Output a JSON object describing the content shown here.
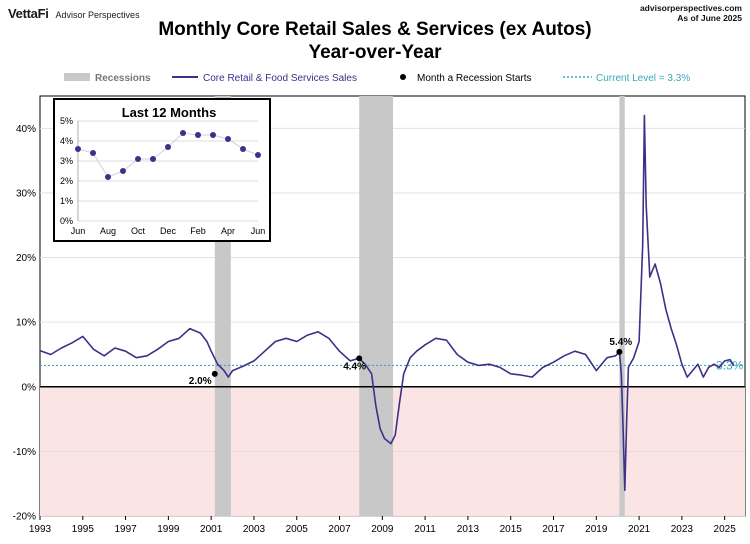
{
  "header": {
    "brand": "VettaFi",
    "brand_sub": "Advisor Perspectives",
    "site": "advisorperspectives.com",
    "as_of": "As of June 2025",
    "title_line1": "Monthly Core Retail Sales & Services (ex Autos)",
    "title_line2": "Year-over-Year"
  },
  "legend": {
    "recessions": "Recessions",
    "series": "Core Retail & Food Services Sales",
    "recession_start": "Month a Recession Starts",
    "current_level": "Current Level = 3.3%"
  },
  "colors": {
    "series": "#3f2f8a",
    "recession": "#c8c8c8",
    "negative_zone": "#fbe4e4",
    "current_level": "#3aa9b8",
    "grid": "#dddddd"
  },
  "chart_data": [
    {
      "type": "line",
      "title": "",
      "y_unit": "%",
      "ylim": [
        -20,
        45
      ],
      "y_ticks": [
        -20,
        -10,
        0,
        10,
        20,
        30,
        40
      ],
      "y_tick_labels": [
        "-20%",
        "-10%",
        "0%",
        "10%",
        "20%",
        "30%",
        "40%"
      ],
      "x_ticks": [
        1993,
        1995,
        1997,
        1999,
        2001,
        2003,
        2005,
        2007,
        2009,
        2011,
        2013,
        2015,
        2017,
        2019,
        2021,
        2023,
        2025
      ],
      "x_tick_labels": [
        "1993",
        "1995",
        "1997",
        "1999",
        "2001",
        "2003",
        "2005",
        "2007",
        "2009",
        "2011",
        "2013",
        "2015",
        "2017",
        "2019",
        "2021",
        "2023",
        "2025"
      ],
      "recessions": [
        [
          2001.17,
          2001.92
        ],
        [
          2007.92,
          2009.5
        ],
        [
          2020.08,
          2020.33
        ]
      ],
      "recession_markers": [
        {
          "x": 2001.17,
          "y": 2.0,
          "label": "2.0%"
        },
        {
          "x": 2007.92,
          "y": 4.4,
          "label": "4.4%"
        },
        {
          "x": 2020.08,
          "y": 5.4,
          "label": "5.4%"
        }
      ],
      "current_level": 3.3,
      "current_label": "3.3%",
      "series": [
        {
          "name": "Core Retail & Food Services Sales",
          "points": [
            [
              1993.0,
              5.6
            ],
            [
              1993.5,
              5.0
            ],
            [
              1994.0,
              6.0
            ],
            [
              1994.5,
              6.8
            ],
            [
              1995.0,
              7.8
            ],
            [
              1995.5,
              5.8
            ],
            [
              1996.0,
              4.8
            ],
            [
              1996.5,
              6.0
            ],
            [
              1997.0,
              5.5
            ],
            [
              1997.5,
              4.5
            ],
            [
              1998.0,
              4.8
            ],
            [
              1998.5,
              5.8
            ],
            [
              1999.0,
              7.0
            ],
            [
              1999.5,
              7.5
            ],
            [
              2000.0,
              9.0
            ],
            [
              2000.5,
              8.3
            ],
            [
              2000.8,
              7.0
            ],
            [
              2001.0,
              5.5
            ],
            [
              2001.3,
              3.5
            ],
            [
              2001.6,
              2.5
            ],
            [
              2001.8,
              1.5
            ],
            [
              2002.0,
              2.5
            ],
            [
              2002.5,
              3.2
            ],
            [
              2003.0,
              4.0
            ],
            [
              2003.5,
              5.5
            ],
            [
              2004.0,
              7.0
            ],
            [
              2004.5,
              7.5
            ],
            [
              2005.0,
              7.0
            ],
            [
              2005.5,
              8.0
            ],
            [
              2006.0,
              8.5
            ],
            [
              2006.5,
              7.5
            ],
            [
              2007.0,
              5.5
            ],
            [
              2007.5,
              4.0
            ],
            [
              2007.9,
              4.4
            ],
            [
              2008.2,
              3.5
            ],
            [
              2008.5,
              2.0
            ],
            [
              2008.7,
              -3.0
            ],
            [
              2008.9,
              -6.5
            ],
            [
              2009.1,
              -8.0
            ],
            [
              2009.4,
              -8.8
            ],
            [
              2009.6,
              -7.5
            ],
            [
              2009.8,
              -2.5
            ],
            [
              2010.0,
              2.0
            ],
            [
              2010.3,
              4.5
            ],
            [
              2010.6,
              5.5
            ],
            [
              2011.0,
              6.5
            ],
            [
              2011.5,
              7.5
            ],
            [
              2012.0,
              7.2
            ],
            [
              2012.5,
              5.0
            ],
            [
              2013.0,
              3.8
            ],
            [
              2013.5,
              3.3
            ],
            [
              2014.0,
              3.5
            ],
            [
              2014.5,
              3.0
            ],
            [
              2015.0,
              2.0
            ],
            [
              2015.5,
              1.8
            ],
            [
              2016.0,
              1.5
            ],
            [
              2016.5,
              3.0
            ],
            [
              2017.0,
              3.8
            ],
            [
              2017.5,
              4.8
            ],
            [
              2018.0,
              5.5
            ],
            [
              2018.5,
              5.0
            ],
            [
              2019.0,
              2.5
            ],
            [
              2019.5,
              4.5
            ],
            [
              2019.9,
              4.8
            ],
            [
              2020.08,
              5.4
            ],
            [
              2020.17,
              2.0
            ],
            [
              2020.25,
              -6.0
            ],
            [
              2020.33,
              -16.0
            ],
            [
              2020.42,
              -5.0
            ],
            [
              2020.5,
              3.0
            ],
            [
              2020.75,
              4.5
            ],
            [
              2021.0,
              7.0
            ],
            [
              2021.17,
              22.0
            ],
            [
              2021.25,
              42.0
            ],
            [
              2021.33,
              28.0
            ],
            [
              2021.5,
              17.0
            ],
            [
              2021.75,
              19.0
            ],
            [
              2022.0,
              16.0
            ],
            [
              2022.25,
              12.0
            ],
            [
              2022.5,
              9.0
            ],
            [
              2022.75,
              6.5
            ],
            [
              2023.0,
              3.5
            ],
            [
              2023.25,
              1.5
            ],
            [
              2023.5,
              2.5
            ],
            [
              2023.75,
              3.5
            ],
            [
              2024.0,
              1.5
            ],
            [
              2024.25,
              3.0
            ],
            [
              2024.5,
              3.5
            ],
            [
              2024.75,
              3.0
            ],
            [
              2025.0,
              4.0
            ],
            [
              2025.25,
              4.2
            ],
            [
              2025.42,
              3.3
            ]
          ]
        }
      ]
    },
    {
      "type": "line",
      "title": "Last 12 Months",
      "ylim": [
        0,
        5
      ],
      "y_ticks": [
        0,
        1,
        2,
        3,
        4,
        5
      ],
      "y_tick_labels": [
        "0%",
        "1%",
        "2%",
        "3%",
        "4%",
        "5%"
      ],
      "x_tick_labels": [
        "Jun",
        "Aug",
        "Oct",
        "Dec",
        "Feb",
        "Apr",
        "Jun"
      ],
      "series": [
        {
          "name": "Core Retail & Food Services Sales",
          "values": [
            3.6,
            3.4,
            2.2,
            2.5,
            3.1,
            3.1,
            3.7,
            4.4,
            4.3,
            4.3,
            4.1,
            3.6,
            3.3
          ]
        }
      ]
    }
  ]
}
